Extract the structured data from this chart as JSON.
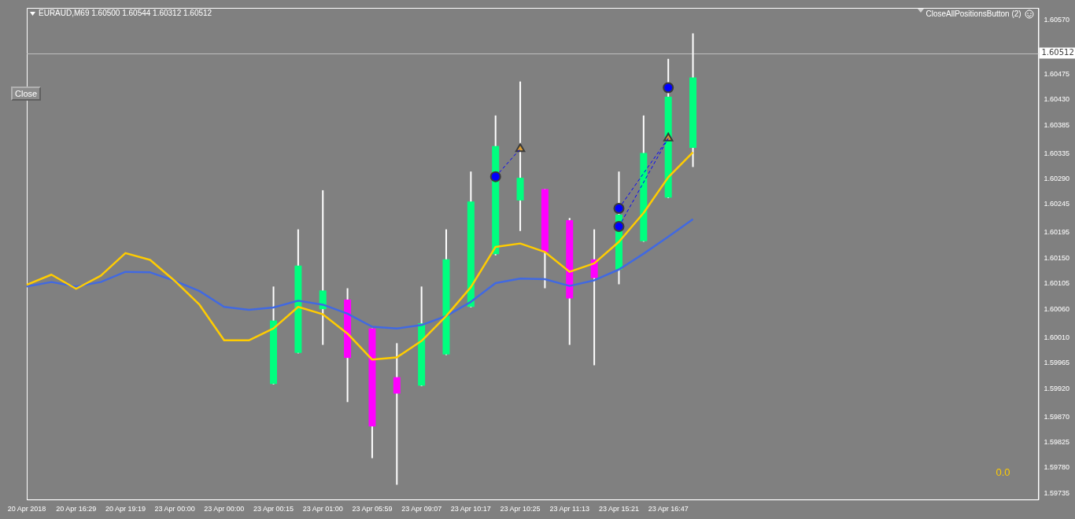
{
  "chart_data": {
    "type": "candlestick",
    "title": "EURAUD,M69  1.60500 1.60544 1.60312 1.60512",
    "categories": [
      "20 Apr 2018",
      null,
      "20 Apr 16:29",
      null,
      "20 Apr 19:19",
      null,
      "23 Apr 00:00",
      null,
      "23 Apr 00:00",
      null,
      "23 Apr 00:15",
      null,
      "23 Apr 01:00",
      null,
      "23 Apr 05:59",
      null,
      "23 Apr 09:07",
      null,
      "23 Apr 10:17",
      null,
      "23 Apr 10:25",
      null,
      "23 Apr 11:13",
      null,
      "23 Apr 15:21",
      null,
      "23 Apr 16:47",
      null,
      null,
      null,
      null,
      null,
      null,
      null,
      null,
      null,
      null,
      null,
      null,
      null,
      null,
      null
    ],
    "ohlc": [
      null,
      null,
      null,
      null,
      null,
      null,
      null,
      null,
      null,
      null,
      [
        1.59928,
        1.601,
        1.59927,
        1.6004
      ],
      [
        1.59983,
        1.60201,
        1.59982,
        1.60137
      ],
      [
        1.6006,
        1.6027,
        1.59997,
        1.60093
      ],
      [
        1.60077,
        1.60097,
        1.59896,
        1.59974
      ],
      [
        1.60026,
        1.60026,
        1.59797,
        1.59853
      ],
      [
        1.5994,
        1.6,
        1.5975,
        1.59911
      ],
      [
        1.59925,
        1.601,
        1.59924,
        1.60035
      ],
      [
        1.5998,
        1.60201,
        1.59979,
        1.60148
      ],
      [
        1.60064,
        1.60303,
        1.60063,
        1.6025
      ],
      [
        1.60157,
        1.60402,
        1.60155,
        1.60348
      ],
      [
        1.60252,
        1.60462,
        1.60198,
        1.60292
      ],
      [
        1.60272,
        1.60272,
        1.60097,
        1.60161
      ],
      [
        1.60217,
        1.60221,
        1.59997,
        1.60079
      ],
      [
        1.60148,
        1.60201,
        1.59961,
        1.60115
      ],
      [
        1.6013,
        1.60303,
        1.60104,
        1.60227
      ],
      [
        1.6018,
        1.60402,
        1.60179,
        1.60336
      ],
      [
        1.60257,
        1.60502,
        1.60256,
        1.60435
      ],
      [
        1.60345,
        1.60547,
        1.60311,
        1.60469
      ],
      null,
      null,
      null,
      null,
      null,
      null,
      null,
      null,
      null,
      null,
      null,
      null,
      null,
      null
    ],
    "colors": [
      null,
      null,
      null,
      null,
      null,
      null,
      null,
      null,
      null,
      null,
      "#00ff7f",
      "#00ff7f",
      "#00ff7f",
      "#ff00ff",
      "#ff00ff",
      "#ff00ff",
      "#00ff7f",
      "#00ff7f",
      "#00ff7f",
      "#00ff7f",
      "#00ff7f",
      "#ff00ff",
      "#ff00ff",
      "#ff00ff",
      "#00ff7f",
      "#00ff7f",
      "#00ff7f",
      "#00ff7f",
      null,
      null,
      null,
      null,
      null,
      null,
      null,
      null,
      null,
      null,
      null,
      null,
      null,
      null
    ],
    "series": [
      {
        "type": "line",
        "color": "#ffcc00",
        "values": [
          1.60103,
          1.60121,
          1.60096,
          1.60119,
          1.60159,
          1.60147,
          1.6011,
          1.60068,
          1.60005,
          1.60005,
          1.60026,
          1.60064,
          1.60051,
          1.60017,
          1.59971,
          1.59975,
          1.60004,
          1.60048,
          1.60099,
          1.6017,
          1.60176,
          1.60161,
          1.60126,
          1.60141,
          1.60179,
          1.6023,
          1.60293,
          1.60337,
          null,
          null,
          null,
          null,
          null,
          null,
          null,
          null,
          null,
          null,
          null,
          null,
          null,
          null
        ]
      },
      {
        "type": "line",
        "color": "#4169e1",
        "values": [
          1.601,
          1.60108,
          1.601,
          1.60108,
          1.60126,
          1.60125,
          1.6011,
          1.60092,
          1.60064,
          1.60059,
          1.60063,
          1.60075,
          1.60068,
          1.60052,
          1.60029,
          1.60026,
          1.60032,
          1.60048,
          1.60073,
          1.60106,
          1.60114,
          1.60113,
          1.60101,
          1.60111,
          1.6013,
          1.60158,
          1.60188,
          1.60219,
          null,
          null,
          null,
          null,
          null,
          null,
          null,
          null,
          null,
          null,
          null,
          null,
          null,
          null
        ]
      },
      {
        "type": "line",
        "line_style": "dashed",
        "color": "#0000ff",
        "values": [
          null,
          null,
          null,
          null,
          null,
          null,
          null,
          null,
          null,
          null,
          null,
          null,
          null,
          null,
          null,
          null,
          null,
          null,
          null,
          1.60294,
          1.60343,
          null,
          null,
          null,
          null,
          null,
          null,
          null,
          null,
          null,
          null,
          null,
          null,
          null,
          null,
          null,
          null,
          null,
          null,
          null,
          null,
          null
        ]
      },
      {
        "type": "line",
        "line_style": "dashed",
        "color": "#0000ff",
        "values": [
          null,
          null,
          null,
          null,
          null,
          null,
          null,
          null,
          null,
          null,
          null,
          null,
          null,
          null,
          null,
          null,
          null,
          null,
          null,
          null,
          null,
          null,
          null,
          null,
          1.60238,
          null,
          1.60362,
          null,
          null,
          null,
          null,
          null,
          null,
          null,
          null,
          null,
          null,
          null,
          null,
          null,
          null,
          null
        ]
      },
      {
        "type": "line",
        "line_style": "dashed",
        "color": "#0000ff",
        "values": [
          null,
          null,
          null,
          null,
          null,
          null,
          null,
          null,
          null,
          null,
          null,
          null,
          null,
          null,
          null,
          null,
          null,
          null,
          null,
          null,
          null,
          null,
          null,
          null,
          1.60206,
          null,
          1.60362,
          null,
          null,
          null,
          null,
          null,
          null,
          null,
          null,
          null,
          null,
          null,
          null,
          null,
          null,
          null
        ]
      },
      {
        "type": "scatter",
        "marker": "circle",
        "color": "#0000ff",
        "values": [
          null,
          null,
          null,
          null,
          null,
          null,
          null,
          null,
          null,
          null,
          null,
          null,
          null,
          null,
          null,
          null,
          null,
          null,
          null,
          1.60294,
          null,
          null,
          null,
          null,
          1.60238,
          null,
          1.60451,
          null,
          null,
          null,
          null,
          null,
          null,
          null,
          null,
          null,
          null,
          null,
          null,
          null,
          null,
          null
        ]
      },
      {
        "type": "scatter",
        "marker": "circle",
        "color": "#0000ff",
        "values": [
          null,
          null,
          null,
          null,
          null,
          null,
          null,
          null,
          null,
          null,
          null,
          null,
          null,
          null,
          null,
          null,
          null,
          null,
          null,
          null,
          null,
          null,
          null,
          null,
          1.60206,
          null,
          null,
          null,
          null,
          null,
          null,
          null,
          null,
          null,
          null,
          null,
          null,
          null,
          null,
          null,
          null,
          null
        ]
      },
      {
        "type": "scatter",
        "marker": "triangle",
        "color": "#e0a030",
        "values": [
          null,
          null,
          null,
          null,
          null,
          null,
          null,
          null,
          null,
          null,
          null,
          null,
          null,
          null,
          null,
          null,
          null,
          null,
          null,
          null,
          1.60343,
          null,
          null,
          null,
          null,
          null,
          1.60362,
          null,
          null,
          null,
          null,
          null,
          null,
          null,
          null,
          null,
          null,
          null,
          null,
          null,
          null,
          null
        ]
      }
    ],
    "ylim": [
      1.59724,
      1.60592
    ],
    "yticks": [
      {
        "value": 1.6057,
        "label": "1.60570"
      },
      {
        "value": 1.60475,
        "label": "1.60475"
      },
      {
        "value": 1.6043,
        "label": "1.60430"
      },
      {
        "value": 1.60385,
        "label": "1.60385"
      },
      {
        "value": 1.60335,
        "label": "1.60335"
      },
      {
        "value": 1.6029,
        "label": "1.60290"
      },
      {
        "value": 1.60245,
        "label": "1.60245"
      },
      {
        "value": 1.60195,
        "label": "1.60195"
      },
      {
        "value": 1.6015,
        "label": "1.60150"
      },
      {
        "value": 1.60105,
        "label": "1.60105"
      },
      {
        "value": 1.6006,
        "label": "1.60060"
      },
      {
        "value": 1.6001,
        "label": "1.60010"
      },
      {
        "value": 1.59965,
        "label": "1.59965"
      },
      {
        "value": 1.5992,
        "label": "1.59920"
      },
      {
        "value": 1.5987,
        "label": "1.59870"
      },
      {
        "value": 1.59825,
        "label": "1.59825"
      },
      {
        "value": 1.5978,
        "label": "1.59780"
      },
      {
        "value": 1.59735,
        "label": "1.59735"
      }
    ],
    "ref_lines": [
      {
        "axis": "y",
        "value": 1.60512,
        "label": "1.60512",
        "color": "#c0c0c0"
      }
    ],
    "annotations": [
      "Close",
      "CloseAllPositionsButton (2)",
      "0.0"
    ],
    "grid": false,
    "legend": false
  }
}
